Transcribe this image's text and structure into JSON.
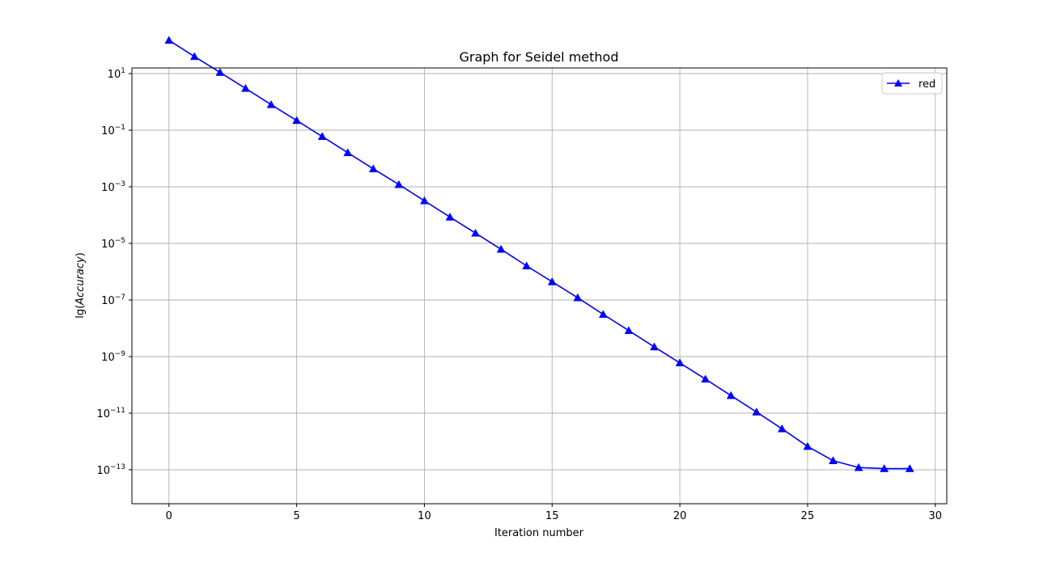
{
  "chart_data": {
    "type": "line",
    "title": "Graph for Seidel method",
    "xlabel": "Iteration number",
    "ylabel_prefix": "lg(",
    "ylabel_italic": "Accuracy",
    "ylabel_suffix": ")",
    "yscale": "log",
    "grid": true,
    "legend_position": "top-right",
    "xlim": [
      -1.45,
      30.45
    ],
    "ylim_exp": [
      -14.2,
      1.2
    ],
    "x_ticks": [
      0,
      5,
      10,
      15,
      20,
      25,
      30
    ],
    "x_tick_labels": [
      "0",
      "5",
      "10",
      "15",
      "20",
      "25",
      "30"
    ],
    "y_tick_exponents": [
      1,
      -1,
      -3,
      -5,
      -7,
      -9,
      -11,
      -13
    ],
    "series": [
      {
        "name": "red",
        "color": "#0000ff",
        "marker": "triangle-up",
        "x": [
          0,
          1,
          2,
          3,
          4,
          5,
          6,
          7,
          8,
          9,
          10,
          11,
          12,
          13,
          14,
          15,
          16,
          17,
          18,
          19,
          20,
          21,
          22,
          23,
          24,
          25,
          26,
          27,
          28,
          29
        ],
        "y": [
          150,
          40,
          11,
          3,
          0.8,
          0.22,
          0.06,
          0.016,
          0.0043,
          0.0012,
          0.00032,
          8.5e-05,
          2.3e-05,
          6.2e-06,
          1.6e-06,
          4.4e-07,
          1.2e-07,
          3.1e-08,
          8.3e-09,
          2.2e-09,
          6e-10,
          1.6e-10,
          4.2e-11,
          1.1e-11,
          2.8e-12,
          6.7e-13,
          2.1e-13,
          1.2e-13,
          1.1e-13,
          1.1e-13
        ]
      }
    ]
  }
}
